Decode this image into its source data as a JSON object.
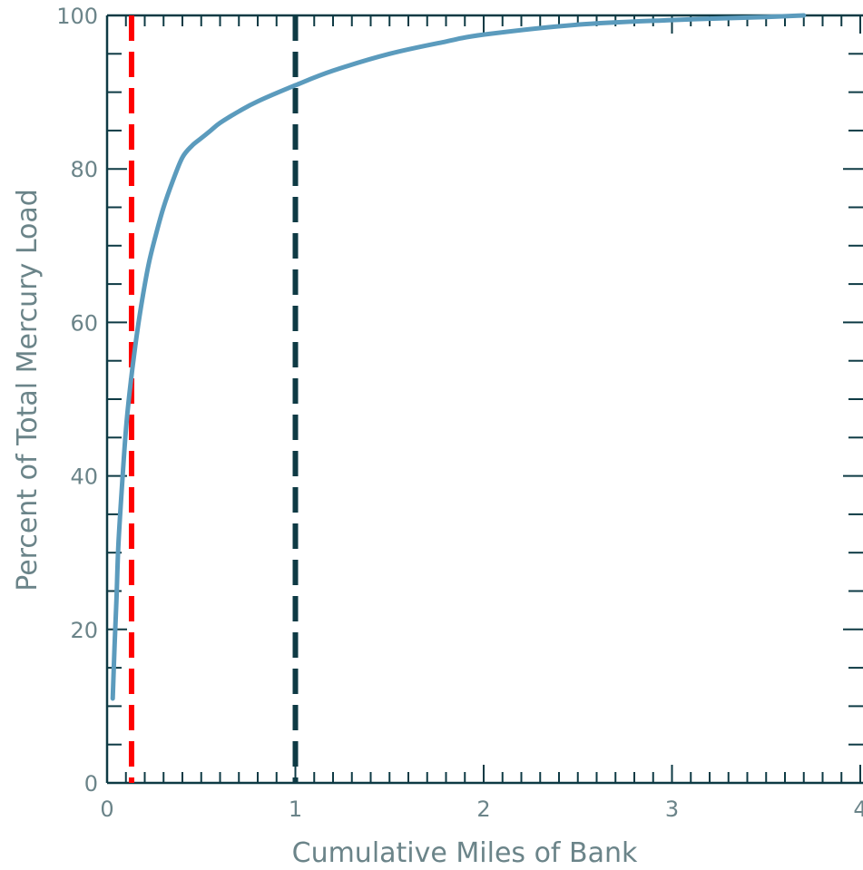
{
  "chart_data": {
    "type": "line",
    "xlabel": "Cumulative Miles of Bank",
    "ylabel": "Percent of Total Mercury Load",
    "xlim": [
      0,
      4
    ],
    "ylim": [
      0,
      100
    ],
    "x_ticks": [
      "0",
      "1",
      "2",
      "3",
      "4"
    ],
    "y_ticks": [
      "0",
      "20",
      "40",
      "60",
      "80",
      "100"
    ],
    "grid": false,
    "colors": {
      "axis": "#0e3a44",
      "curve": "#5b9bbd",
      "red_line": "#ff0000",
      "dark_line": "#0e3a44",
      "tick_label": "#6b8489"
    },
    "series": [
      {
        "x": [
          0.03,
          0.04,
          0.05,
          0.06,
          0.08,
          0.1,
          0.12,
          0.15,
          0.18,
          0.22,
          0.26,
          0.3,
          0.35,
          0.4,
          0.45,
          0.5,
          0.55,
          0.6,
          0.7,
          0.8,
          1.0,
          1.2,
          1.5,
          1.8,
          2.0,
          2.5,
          3.0,
          3.5,
          3.7
        ],
        "y": [
          11,
          18,
          24,
          31,
          39,
          46,
          51,
          57,
          62,
          67.5,
          71.5,
          75,
          78.5,
          81.5,
          83,
          84,
          85,
          86,
          87.5,
          88.8,
          90.9,
          92.8,
          95,
          96.6,
          97.5,
          98.8,
          99.4,
          99.8,
          100
        ]
      }
    ],
    "reference_lines": [
      {
        "x": 0.13,
        "color": "#ff0000",
        "style": "dashed"
      },
      {
        "x": 1.0,
        "color": "#0e3a44",
        "style": "dashed"
      }
    ]
  }
}
